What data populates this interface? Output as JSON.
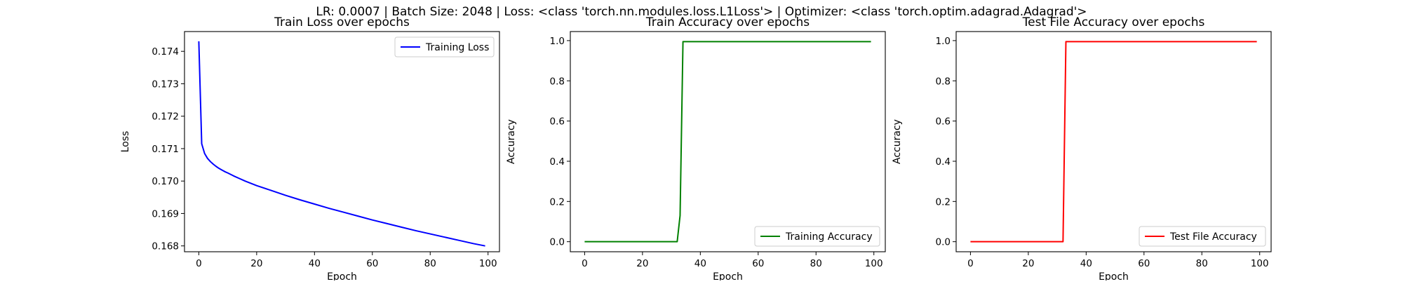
{
  "suptitle": "LR: 0.0007 | Batch Size: 2048 | Loss: <class 'torch.nn.modules.loss.L1Loss'> | Optimizer: <class 'torch.optim.adagrad.Adagrad'>",
  "chart_data": [
    {
      "type": "line",
      "title": "Train Loss over epochs",
      "xlabel": "Epoch",
      "ylabel": "Loss",
      "xlim": [
        -4.95,
        103.95
      ],
      "ylim": [
        0.16782,
        0.17461
      ],
      "xticks": [
        0,
        20,
        40,
        60,
        80,
        100
      ],
      "yticks": [
        0.168,
        0.169,
        0.17,
        0.171,
        0.172,
        0.173,
        0.174
      ],
      "ytick_labels": [
        "0.168",
        "0.169",
        "0.170",
        "0.171",
        "0.172",
        "0.173",
        "0.174"
      ],
      "grid": false,
      "legend": "upper right",
      "series": [
        {
          "name": "Training Loss",
          "color": "#0000ff",
          "x": [
            0,
            1,
            2,
            3,
            4,
            5,
            6,
            7,
            8,
            9,
            10,
            12,
            14,
            16,
            18,
            20,
            25,
            30,
            35,
            40,
            45,
            50,
            55,
            60,
            65,
            70,
            75,
            80,
            85,
            90,
            95,
            99
          ],
          "y": [
            0.17431,
            0.17115,
            0.17085,
            0.1707,
            0.1706,
            0.17052,
            0.17045,
            0.17039,
            0.17034,
            0.17029,
            0.17025,
            0.17016,
            0.17008,
            0.17,
            0.16993,
            0.16986,
            0.16971,
            0.16956,
            0.16942,
            0.16929,
            0.16916,
            0.16904,
            0.16892,
            0.1688,
            0.16869,
            0.16858,
            0.16847,
            0.16837,
            0.16827,
            0.16817,
            0.16807,
            0.168
          ]
        }
      ]
    },
    {
      "type": "line",
      "title": "Train Accuracy over epochs",
      "xlabel": "Epoch",
      "ylabel": "Accuracy",
      "xlim": [
        -4.95,
        103.95
      ],
      "ylim": [
        -0.05,
        1.045
      ],
      "xticks": [
        0,
        20,
        40,
        60,
        80,
        100
      ],
      "yticks": [
        0.0,
        0.2,
        0.4,
        0.6,
        0.8,
        1.0
      ],
      "ytick_labels": [
        "0.0",
        "0.2",
        "0.4",
        "0.6",
        "0.8",
        "1.0"
      ],
      "grid": false,
      "legend": "lower right",
      "series": [
        {
          "name": "Training Accuracy",
          "color": "#008000",
          "x": [
            0,
            32,
            33,
            34,
            99
          ],
          "y": [
            0.0,
            0.0,
            0.13,
            0.995,
            0.995
          ]
        }
      ]
    },
    {
      "type": "line",
      "title": "Test File Accuracy over epochs",
      "xlabel": "Epoch",
      "ylabel": "Accuracy",
      "xlim": [
        -4.95,
        103.95
      ],
      "ylim": [
        -0.05,
        1.045
      ],
      "xticks": [
        0,
        20,
        40,
        60,
        80,
        100
      ],
      "yticks": [
        0.0,
        0.2,
        0.4,
        0.6,
        0.8,
        1.0
      ],
      "ytick_labels": [
        "0.0",
        "0.2",
        "0.4",
        "0.6",
        "0.8",
        "1.0"
      ],
      "grid": false,
      "legend": "lower right",
      "series": [
        {
          "name": "Test File Accuracy",
          "color": "#ff0000",
          "x": [
            0,
            32,
            33,
            99
          ],
          "y": [
            0.0,
            0.0,
            0.995,
            0.995
          ]
        }
      ]
    }
  ]
}
